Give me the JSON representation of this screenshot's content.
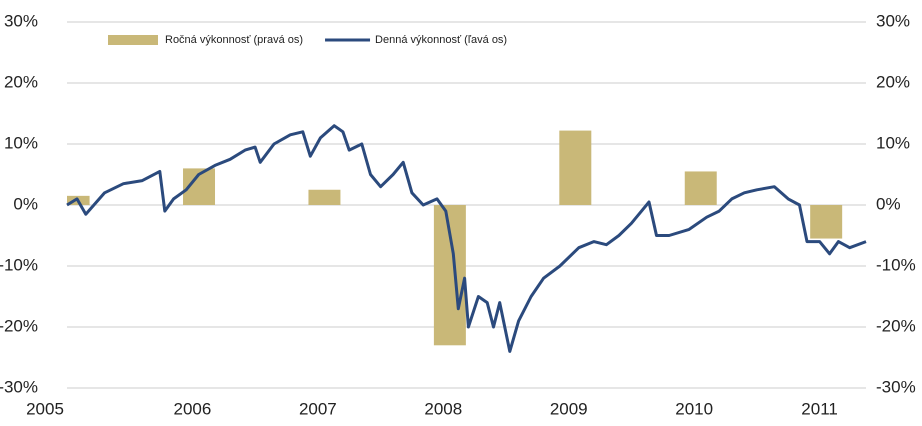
{
  "chart_data": {
    "type": "bar-line",
    "xlim": [
      2005,
      2011.37
    ],
    "xticks": [
      2005,
      2006,
      2007,
      2008,
      2009,
      2010,
      2011
    ],
    "ylim": [
      -30,
      30
    ],
    "yticks": [
      {
        "value": -30,
        "label": "-30%"
      },
      {
        "value": -20,
        "label": "-20%"
      },
      {
        "value": -10,
        "label": "-10%"
      },
      {
        "value": 0,
        "label": "0%"
      },
      {
        "value": 10,
        "label": "10%"
      },
      {
        "value": 20,
        "label": "20%"
      },
      {
        "value": 30,
        "label": "30%"
      }
    ],
    "y2lim": [
      -30,
      30
    ],
    "y2ticks": [
      {
        "value": -30,
        "label": "-30%"
      },
      {
        "value": -20,
        "label": "-20%"
      },
      {
        "value": -10,
        "label": "-10%"
      },
      {
        "value": 0,
        "label": "0%"
      },
      {
        "value": 10,
        "label": "10%"
      },
      {
        "value": 20,
        "label": "20%"
      },
      {
        "value": 30,
        "label": "30%"
      }
    ],
    "grid": true,
    "legend": "top-left",
    "series": [
      {
        "name": "Ročná výkonnosť (pravá os)",
        "type": "bar",
        "axis": "y2",
        "color": "#c9b878",
        "x": [
          2005,
          2006,
          2007,
          2008,
          2009,
          2010,
          2011
        ],
        "values": [
          1.5,
          6,
          2.5,
          -23,
          12.2,
          5.5,
          -5.5
        ]
      },
      {
        "name": "Denná výkonnosť (ľavá os)",
        "type": "line",
        "color": "#2b4a7d",
        "x": [
          2005.0,
          2005.08,
          2005.15,
          2005.3,
          2005.45,
          2005.6,
          2005.74,
          2005.78,
          2005.85,
          2005.95,
          2006.05,
          2006.18,
          2006.3,
          2006.42,
          2006.5,
          2006.54,
          2006.65,
          2006.78,
          2006.88,
          2006.94,
          2007.02,
          2007.13,
          2007.2,
          2007.25,
          2007.35,
          2007.42,
          2007.5,
          2007.6,
          2007.68,
          2007.75,
          2007.84,
          2007.95,
          2008.02,
          2008.08,
          2008.12,
          2008.17,
          2008.2,
          2008.28,
          2008.35,
          2008.4,
          2008.45,
          2008.53,
          2008.6,
          2008.7,
          2008.8,
          2008.93,
          2009.08,
          2009.2,
          2009.3,
          2009.4,
          2009.5,
          2009.64,
          2009.7,
          2009.8,
          2009.96,
          2010.1,
          2010.2,
          2010.3,
          2010.4,
          2010.5,
          2010.64,
          2010.75,
          2010.84,
          2010.9,
          2011.0,
          2011.08,
          2011.15,
          2011.24,
          2011.37
        ],
        "values": [
          0,
          1,
          -1.5,
          2,
          3.5,
          4,
          5.5,
          -1,
          1,
          2.5,
          5,
          6.5,
          7.5,
          9,
          9.5,
          7,
          10,
          11.5,
          12,
          8,
          11,
          13,
          12,
          9,
          10,
          5,
          3,
          5,
          7,
          2,
          0,
          1,
          -1,
          -8,
          -17,
          -12,
          -20,
          -15,
          -16,
          -20,
          -16,
          -24,
          -19,
          -15,
          -12,
          -10,
          -7,
          -6,
          -6.5,
          -5,
          -3,
          0.5,
          -5,
          -5,
          -4,
          -2,
          -1,
          1,
          2,
          2.5,
          3,
          1,
          0,
          -6,
          -6,
          -8,
          -6,
          -7,
          -6
        ]
      }
    ]
  }
}
